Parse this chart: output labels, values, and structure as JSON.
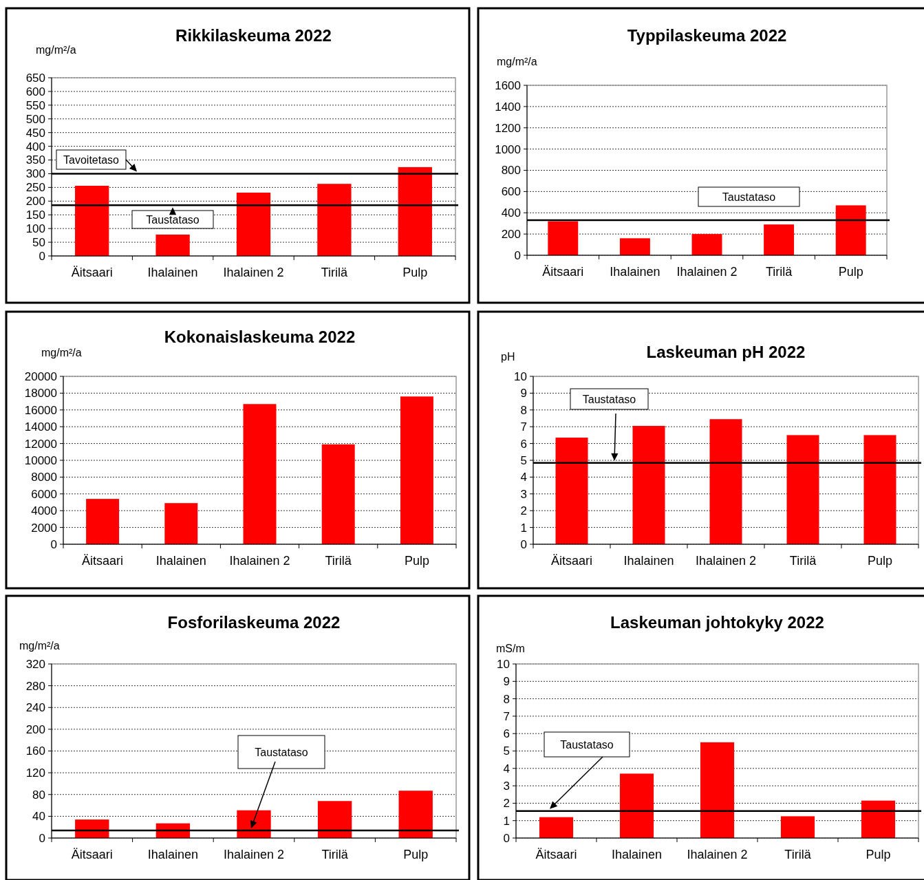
{
  "chart_data": [
    {
      "type": "bar",
      "title": "Rikkilaskeuma 2022",
      "ylabel": "mg/m²/a",
      "categories": [
        "Äitsaari",
        "Ihalainen",
        "Ihalainen 2",
        "Tirilä",
        "Pulp"
      ],
      "values": [
        256,
        78,
        231,
        263,
        324
      ],
      "color": "#ff0000",
      "ylim": [
        0,
        650
      ],
      "yticks": [
        0,
        50,
        100,
        150,
        200,
        250,
        300,
        350,
        400,
        450,
        500,
        550,
        600,
        650
      ],
      "grid": "y",
      "ref_lines": [
        {
          "axis": "y",
          "value": 300,
          "label": "Tavoitetaso",
          "color": "#000000"
        },
        {
          "axis": "y",
          "value": 185,
          "label": "Taustataso",
          "color": "#000000"
        }
      ]
    },
    {
      "type": "bar",
      "title": "Typpilaskeuma 2022",
      "ylabel": "mg/m²/a",
      "categories": [
        "Äitsaari",
        "Ihalainen",
        "Ihalainen 2",
        "Tirilä",
        "Pulp"
      ],
      "values": [
        320,
        160,
        200,
        290,
        470
      ],
      "color": "#ff0000",
      "ylim": [
        0,
        1600
      ],
      "yticks": [
        0,
        200,
        400,
        600,
        800,
        1000,
        1200,
        1400,
        1600
      ],
      "grid": "y",
      "ref_lines": [
        {
          "axis": "y",
          "value": 330,
          "label": "Taustataso",
          "color": "#000000"
        }
      ]
    },
    {
      "type": "bar",
      "title": "Kokonaislaskeuma 2022",
      "ylabel": "mg/m²/a",
      "categories": [
        "Äitsaari",
        "Ihalainen",
        "Ihalainen 2",
        "Tirilä",
        "Pulp"
      ],
      "values": [
        5400,
        4900,
        16700,
        11900,
        17600
      ],
      "color": "#ff0000",
      "ylim": [
        0,
        20000
      ],
      "yticks": [
        0,
        2000,
        4000,
        6000,
        8000,
        10000,
        12000,
        14000,
        16000,
        18000,
        20000
      ],
      "grid": "y"
    },
    {
      "type": "bar",
      "title": "Laskeuman pH 2022",
      "ylabel": "pH",
      "categories": [
        "Äitsaari",
        "Ihalainen",
        "Ihalainen 2",
        "Tirilä",
        "Pulp"
      ],
      "values": [
        6.35,
        7.05,
        7.45,
        6.5,
        6.5
      ],
      "color": "#ff0000",
      "ylim": [
        0,
        10
      ],
      "yticks": [
        0,
        1,
        2,
        3,
        4,
        5,
        6,
        7,
        8,
        9,
        10
      ],
      "grid": "y",
      "ref_lines": [
        {
          "axis": "y",
          "value": 4.85,
          "label": "Taustataso",
          "color": "#000000"
        }
      ]
    },
    {
      "type": "bar",
      "title": "Fosforilaskeuma 2022",
      "ylabel": "mg/m²/a",
      "categories": [
        "Äitsaari",
        "Ihalainen",
        "Ihalainen 2",
        "Tirilä",
        "Pulp"
      ],
      "values": [
        34,
        27,
        51,
        68,
        87
      ],
      "color": "#ff0000",
      "ylim": [
        0,
        320
      ],
      "yticks": [
        0,
        40,
        80,
        120,
        160,
        200,
        240,
        280,
        320
      ],
      "grid": "y",
      "ref_lines": [
        {
          "axis": "y",
          "value": 14,
          "label": "Taustataso",
          "color": "#000000"
        }
      ]
    },
    {
      "type": "bar",
      "title": "Laskeuman johtokyky 2022",
      "ylabel": "mS/m",
      "categories": [
        "Äitsaari",
        "Ihalainen",
        "Ihalainen 2",
        "Tirilä",
        "Pulp"
      ],
      "values": [
        1.2,
        3.7,
        5.5,
        1.25,
        2.15
      ],
      "color": "#ff0000",
      "ylim": [
        0,
        10
      ],
      "yticks": [
        0,
        1,
        2,
        3,
        4,
        5,
        6,
        7,
        8,
        9,
        10
      ],
      "grid": "y",
      "ref_lines": [
        {
          "axis": "y",
          "value": 1.55,
          "label": "Taustataso",
          "color": "#000000"
        }
      ]
    }
  ]
}
